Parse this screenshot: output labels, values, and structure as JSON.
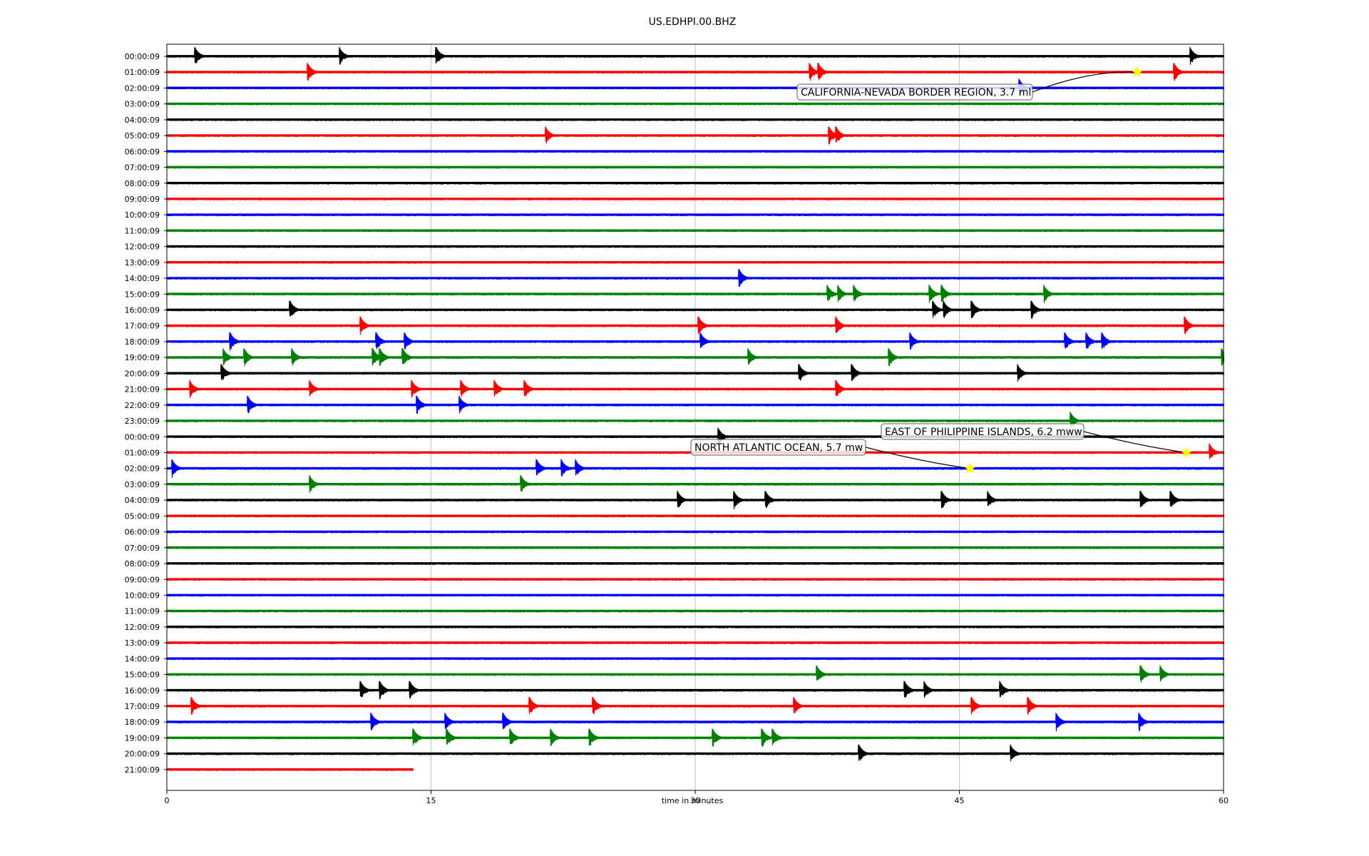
{
  "chart_data": {
    "type": "line",
    "title": "US.EDHPI.00.BHZ",
    "xlabel": "time in minutes",
    "ylabel": "",
    "xlim": [
      0,
      60
    ],
    "x_ticks": [
      "0",
      "15",
      "30",
      "45",
      "60"
    ],
    "grid": "vertical at x ticks",
    "trace_colors": [
      "#000000",
      "#ff0000",
      "#0000ff",
      "#008000"
    ],
    "row_labels": [
      "00:00:09",
      "01:00:09",
      "02:00:09",
      "03:00:09",
      "04:00:09",
      "05:00:09",
      "06:00:09",
      "07:00:09",
      "08:00:09",
      "09:00:09",
      "10:00:09",
      "11:00:09",
      "12:00:09",
      "13:00:09",
      "14:00:09",
      "15:00:09",
      "16:00:09",
      "17:00:09",
      "18:00:09",
      "19:00:09",
      "20:00:09",
      "21:00:09",
      "22:00:09",
      "23:00:09",
      "00:00:09",
      "01:00:09",
      "02:00:09",
      "03:00:09",
      "04:00:09",
      "05:00:09",
      "06:00:09",
      "07:00:09",
      "08:00:09",
      "09:00:09",
      "10:00:09",
      "11:00:09",
      "12:00:09",
      "13:00:09",
      "14:00:09",
      "15:00:09",
      "16:00:09",
      "17:00:09",
      "18:00:09",
      "19:00:09",
      "20:00:09",
      "21:00:09"
    ],
    "last_trace_end_minutes": 14,
    "events": [
      {
        "row": 0,
        "x": [
          1.6,
          9.8,
          15.3,
          58.1
        ]
      },
      {
        "row": 1,
        "x": [
          8.0,
          36.5,
          37.0,
          57.2
        ]
      },
      {
        "row": 2,
        "x": [
          48.4
        ]
      },
      {
        "row": 5,
        "x": [
          21.5,
          37.6,
          38.0
        ]
      },
      {
        "row": 14,
        "x": [
          32.5
        ]
      },
      {
        "row": 15,
        "x": [
          37.5,
          38.1,
          39.0,
          43.3,
          44.0,
          49.8
        ]
      },
      {
        "row": 16,
        "x": [
          7.0,
          43.5,
          44.1,
          45.7,
          49.1
        ]
      },
      {
        "row": 17,
        "x": [
          11.0,
          30.2,
          38.0,
          57.8
        ]
      },
      {
        "row": 18,
        "x": [
          3.6,
          11.9,
          13.5,
          30.3,
          42.2,
          51.0,
          52.2,
          53.1
        ]
      },
      {
        "row": 19,
        "x": [
          3.2,
          4.4,
          7.1,
          11.7,
          12.1,
          13.4,
          33.0,
          41.0,
          59.9
        ]
      },
      {
        "row": 20,
        "x": [
          3.1,
          35.9,
          38.9,
          48.3
        ]
      },
      {
        "row": 21,
        "x": [
          1.3,
          8.1,
          13.9,
          16.7,
          18.6,
          20.3,
          38.0
        ]
      },
      {
        "row": 22,
        "x": [
          4.6,
          14.2,
          16.6
        ]
      },
      {
        "row": 23,
        "x": [
          51.3
        ]
      },
      {
        "row": 24,
        "x": [
          31.3
        ]
      },
      {
        "row": 25,
        "x": [
          59.2
        ]
      },
      {
        "row": 26,
        "x": [
          0.3,
          21.0,
          22.4,
          23.2
        ]
      },
      {
        "row": 27,
        "x": [
          8.1,
          20.1
        ]
      },
      {
        "row": 28,
        "x": [
          29.0,
          32.2,
          34.0,
          44.0,
          46.6,
          55.3,
          57.0
        ]
      },
      {
        "row": 38,
        "x": []
      },
      {
        "row": 39,
        "x": [
          36.9,
          55.3,
          56.4
        ]
      },
      {
        "row": 40,
        "x": [
          11.0,
          12.1,
          13.8,
          41.9,
          43.0,
          47.3
        ]
      },
      {
        "row": 41,
        "x": [
          1.4,
          20.6,
          24.2,
          35.6,
          45.7,
          48.9
        ]
      },
      {
        "row": 42,
        "x": [
          11.6,
          15.8,
          19.1,
          50.5,
          55.2
        ]
      },
      {
        "row": 43,
        "x": [
          14.0,
          15.9,
          19.5,
          21.8,
          24.0,
          31.0,
          33.8,
          34.4
        ]
      },
      {
        "row": 44,
        "x": [
          39.3,
          47.9
        ]
      }
    ],
    "annotations": [
      {
        "text": "CALIFORNIA-NEVADA BORDER REGION, 3.7 ml",
        "row": 1,
        "x": 55.1
      },
      {
        "text": "EAST OF PHILIPPINE ISLANDS, 6.2 mww",
        "row": 25,
        "x": 57.9
      },
      {
        "text": "NORTH ATLANTIC OCEAN, 5.7 mw",
        "row": 26,
        "x": 45.6
      }
    ]
  }
}
